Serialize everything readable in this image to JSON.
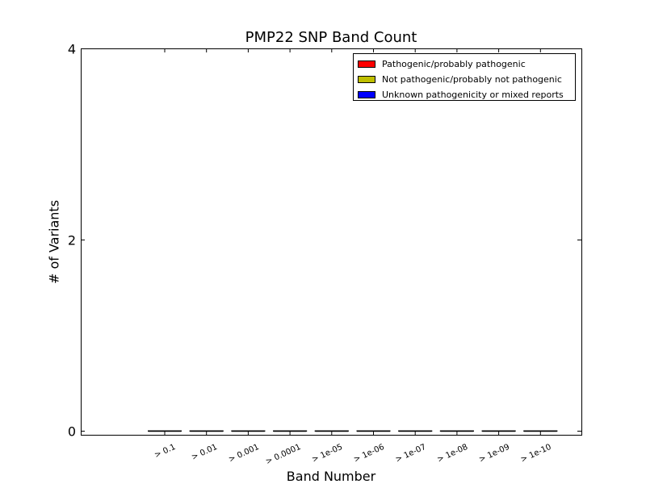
{
  "chart_data": {
    "type": "bar",
    "title": "PMP22 SNP Band Count",
    "xlabel": "Band Number",
    "ylabel": "# of Variants",
    "categories": [
      "> 0.1",
      "> 0.01",
      "> 0.001",
      "> 0.0001",
      "> 1e-05",
      "> 1e-06",
      "> 1e-07",
      "> 1e-08",
      "> 1e-09",
      "> 1e-10"
    ],
    "series": [
      {
        "name": "Pathogenic/probably pathogenic",
        "color": "#ff0000",
        "values": [
          0,
          0,
          0,
          0,
          0,
          0,
          0,
          0,
          0,
          0
        ]
      },
      {
        "name": "Not pathogenic/probably not pathogenic",
        "color": "#bfbf00",
        "values": [
          0,
          0,
          0,
          0,
          0,
          0,
          0,
          0,
          0,
          0
        ]
      },
      {
        "name": "Unknown pathogenicity or mixed reports",
        "color": "#0000ff",
        "values": [
          0,
          0,
          0,
          0,
          0,
          0,
          0,
          0,
          0,
          0
        ]
      }
    ],
    "yticks": [
      0,
      2,
      4
    ],
    "ylim": [
      -0.04,
      4
    ],
    "stacked": true,
    "grid": false,
    "legend_position": "top-right"
  }
}
